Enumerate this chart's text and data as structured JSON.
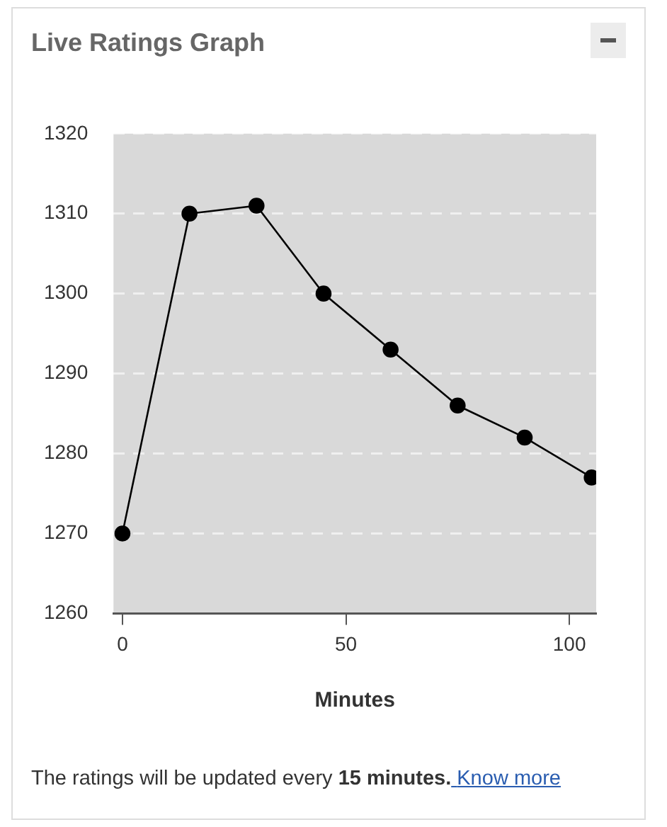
{
  "chart_data": {
    "type": "line",
    "title": "Live Ratings Graph",
    "xlabel": "Minutes",
    "x": [
      0,
      15,
      30,
      45,
      60,
      75,
      90,
      105
    ],
    "series": [
      {
        "color": "#000000",
        "values": [
          1270,
          1310,
          1311,
          1300,
          1293,
          1286,
          1282,
          1277
        ]
      }
    ],
    "xlim": [
      -2,
      106
    ],
    "xticks": [
      0,
      50,
      100
    ],
    "ylim": [
      1260,
      1320
    ],
    "yticks": [
      1260,
      1270,
      1280,
      1290,
      1300,
      1310,
      1320
    ],
    "grid": "y",
    "legend": false,
    "marker": "circle",
    "line_style": "solid",
    "annotations": [
      "The ratings will be updated every",
      "15 minutes.",
      "Know more"
    ]
  }
}
